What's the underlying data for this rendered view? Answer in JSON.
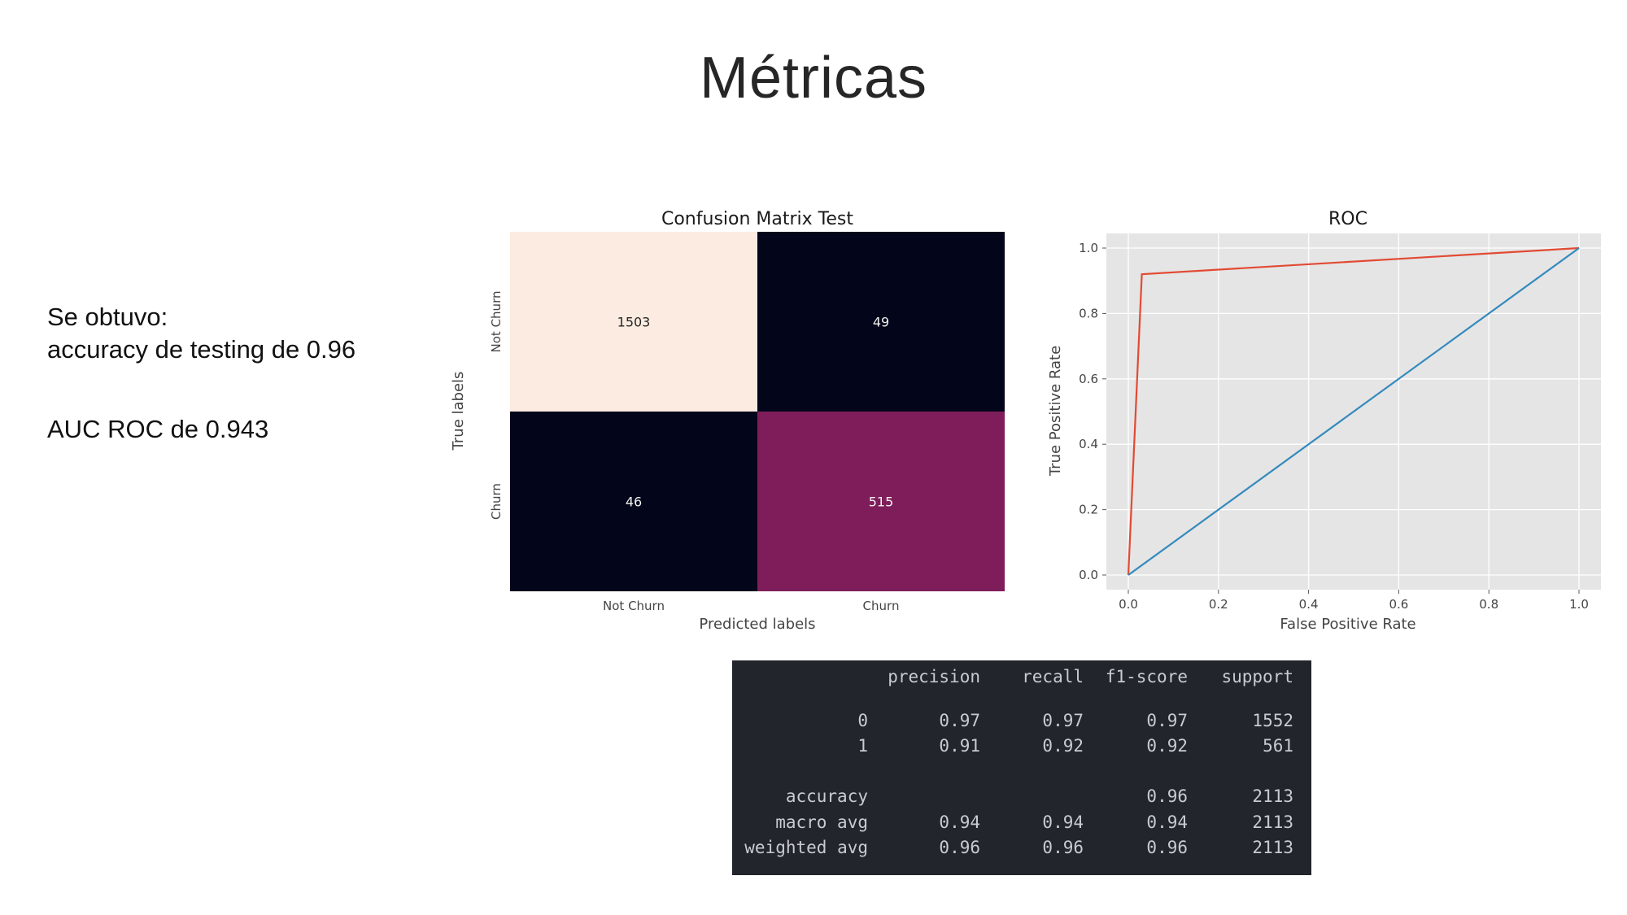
{
  "slide": {
    "title": "Métricas",
    "summary_line1": "Se obtuvo:",
    "summary_line2": "accuracy de testing de 0.96",
    "summary_line3": "AUC ROC de 0.943"
  },
  "colors": {
    "cm_not_churn_not_churn": "#fbebe0",
    "cm_off_diagonal": "#03051a",
    "cm_churn_churn": "#7f1d5a",
    "roc_curve": "#e24a33",
    "roc_diagonal": "#348abd",
    "plot_background": "#e5e5e5",
    "report_background": "#22252b"
  },
  "chart_data": [
    {
      "type": "heatmap",
      "title": "Confusion Matrix Test",
      "xlabel": "Predicted labels",
      "ylabel": "True labels",
      "x_categories": [
        "Not Churn",
        "Churn"
      ],
      "y_categories": [
        "Not Churn",
        "Churn"
      ],
      "values": [
        [
          1503,
          49
        ],
        [
          46,
          515
        ]
      ],
      "colorbar": false
    },
    {
      "type": "line",
      "title": "ROC",
      "xlabel": "False Positive Rate",
      "ylabel": "True Positive Rate",
      "xlim": [
        0.0,
        1.0
      ],
      "ylim": [
        0.0,
        1.0
      ],
      "xticks": [
        "0.0",
        "0.2",
        "0.4",
        "0.6",
        "0.8",
        "1.0"
      ],
      "yticks": [
        "0.0",
        "0.2",
        "0.4",
        "0.6",
        "0.8",
        "1.0"
      ],
      "grid": true,
      "series": [
        {
          "x": [
            0.0,
            0.03,
            1.0
          ],
          "y": [
            0.0,
            0.92,
            1.0
          ],
          "color": "#e24a33"
        },
        {
          "x": [
            0.0,
            1.0
          ],
          "y": [
            0.0,
            1.0
          ],
          "color": "#348abd"
        }
      ]
    }
  ],
  "report": {
    "columns": [
      "precision",
      "recall",
      "f1-score",
      "support"
    ],
    "rows": [
      {
        "label": "0",
        "precision": "0.97",
        "recall": "0.97",
        "f1": "0.97",
        "support": "1552"
      },
      {
        "label": "1",
        "precision": "0.91",
        "recall": "0.92",
        "f1": "0.92",
        "support": "561"
      },
      {
        "label": "accuracy",
        "precision": "",
        "recall": "",
        "f1": "0.96",
        "support": "2113"
      },
      {
        "label": "macro avg",
        "precision": "0.94",
        "recall": "0.94",
        "f1": "0.94",
        "support": "2113"
      },
      {
        "label": "weighted avg",
        "precision": "0.96",
        "recall": "0.96",
        "f1": "0.96",
        "support": "2113"
      }
    ]
  }
}
